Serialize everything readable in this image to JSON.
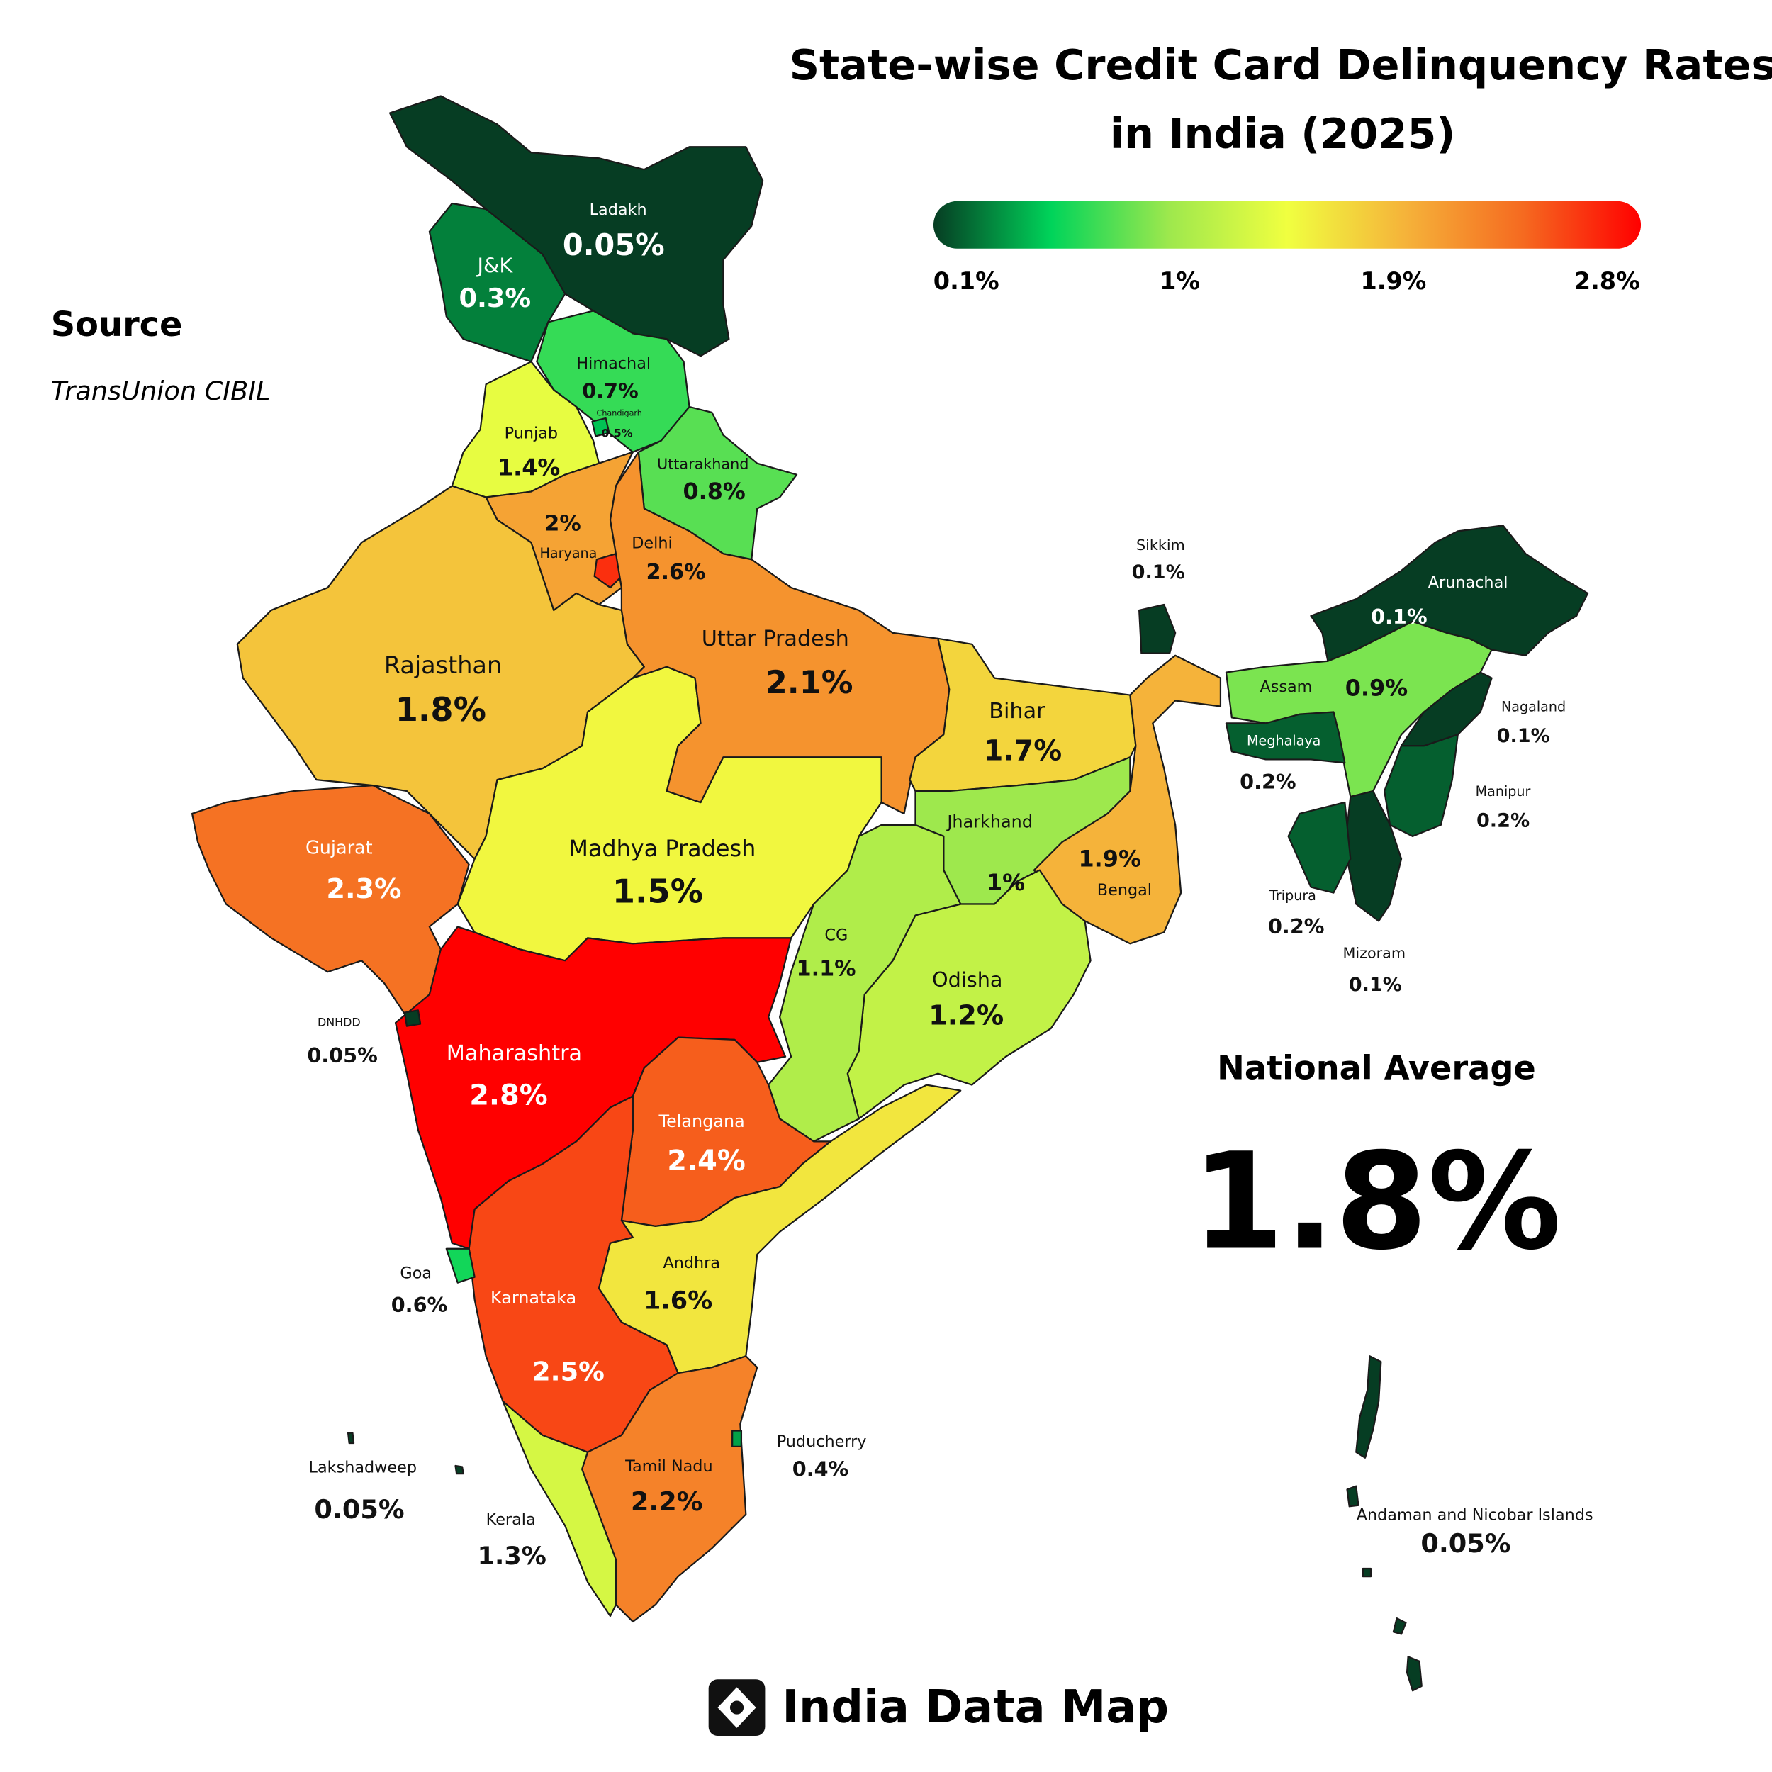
{
  "chart_data": {
    "type": "choropleth",
    "title": [
      "State-wise Credit Card Delinquency Rates",
      "in India (2025)"
    ],
    "source_heading": "Source",
    "source": "TransUnion CIBIL",
    "colorscale": [
      "#063d23",
      "#00d45a",
      "#9ee84d",
      "#f0ff40",
      "#f5b33a",
      "#f56a20",
      "#ff0000"
    ],
    "clim": [
      0.1,
      2.8
    ],
    "colorbar_ticks": [
      {
        "value": 0.1,
        "label": "0.1%"
      },
      {
        "value": 1,
        "label": "1%"
      },
      {
        "value": 1.9,
        "label": "1.9%"
      },
      {
        "value": 2.8,
        "label": "2.8%"
      }
    ],
    "regions": [
      {
        "name": "Ladakh",
        "value": 0.05,
        "value_label": "0.05%"
      },
      {
        "name": "J&K",
        "value": 0.3,
        "value_label": "0.3%"
      },
      {
        "name": "Himachal",
        "value": 0.7,
        "value_label": "0.7%"
      },
      {
        "name": "Punjab",
        "value": 1.4,
        "value_label": "1.4%"
      },
      {
        "name": "Chandigarh",
        "value": 0.5,
        "value_label": "0.5%"
      },
      {
        "name": "Uttarakhand",
        "value": 0.8,
        "value_label": "0.8%"
      },
      {
        "name": "Haryana",
        "value": 2,
        "value_label": "2%"
      },
      {
        "name": "Delhi",
        "value": 2.6,
        "value_label": "2.6%"
      },
      {
        "name": "Rajasthan",
        "value": 1.8,
        "value_label": "1.8%"
      },
      {
        "name": "Gujarat",
        "value": 2.3,
        "value_label": "2.3%"
      },
      {
        "name": "Madhya Pradesh",
        "value": 1.5,
        "value_label": "1.5%"
      },
      {
        "name": "Uttar Pradesh",
        "value": 2.1,
        "value_label": "2.1%"
      },
      {
        "name": "Bihar",
        "value": 1.7,
        "value_label": "1.7%"
      },
      {
        "name": "Jharkhand",
        "value": 1,
        "value_label": "1%"
      },
      {
        "name": "Bengal",
        "value": 1.9,
        "value_label": "1.9%"
      },
      {
        "name": "Odisha",
        "value": 1.2,
        "value_label": "1.2%"
      },
      {
        "name": "CG",
        "value": 1.1,
        "value_label": "1.1%"
      },
      {
        "name": "Maharashtra",
        "value": 2.8,
        "value_label": "2.8%"
      },
      {
        "name": "Telangana",
        "value": 2.4,
        "value_label": "2.4%"
      },
      {
        "name": "Karnataka",
        "value": 2.5,
        "value_label": "2.5%"
      },
      {
        "name": "Andhra",
        "value": 1.6,
        "value_label": "1.6%"
      },
      {
        "name": "Tamil Nadu",
        "value": 2.2,
        "value_label": "2.2%"
      },
      {
        "name": "Kerala",
        "value": 1.3,
        "value_label": "1.3%"
      },
      {
        "name": "Goa",
        "value": 0.6,
        "value_label": "0.6%"
      },
      {
        "name": "Puducherry",
        "value": 0.4,
        "value_label": "0.4%"
      },
      {
        "name": "Lakshadweep",
        "value": 0.05,
        "value_label": "0.05%"
      },
      {
        "name": "DNHDD",
        "value": 0.05,
        "value_label": "0.05%"
      },
      {
        "name": "Sikkim",
        "value": 0.1,
        "value_label": "0.1%"
      },
      {
        "name": "Arunachal",
        "value": 0.1,
        "value_label": "0.1%"
      },
      {
        "name": "Assam",
        "value": 0.9,
        "value_label": "0.9%"
      },
      {
        "name": "Meghalaya",
        "value": 0.2,
        "value_label": "0.2%"
      },
      {
        "name": "Nagaland",
        "value": 0.1,
        "value_label": "0.1%"
      },
      {
        "name": "Manipur",
        "value": 0.2,
        "value_label": "0.2%"
      },
      {
        "name": "Mizoram",
        "value": 0.1,
        "value_label": "0.1%"
      },
      {
        "name": "Tripura",
        "value": 0.2,
        "value_label": "0.2%"
      },
      {
        "name": "Andaman and Nicobar Islands",
        "value": 0.05,
        "value_label": "0.05%"
      }
    ],
    "national_average": {
      "title": "National Average",
      "value": 1.8,
      "value_label": "1.8%"
    },
    "brand": "India Data Map"
  }
}
